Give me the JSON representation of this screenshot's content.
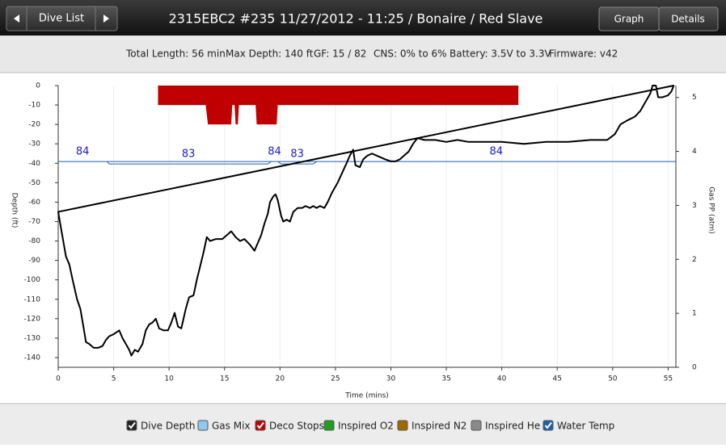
{
  "header": {
    "dive_list": "Dive List",
    "title": "2315EBC2 #235 11/27/2012 - 11:25  / Bonaire / Red Slave",
    "graph": "Graph",
    "details": "Details"
  },
  "info": [
    "Total Length: 56 min",
    "Max Depth: 140 ft",
    "GF: 15 / 82",
    "CNS: 0% to 6%",
    "Battery: 3.5V to 3.3V",
    "Firmware: v42"
  ],
  "chart_data": {
    "type": "line",
    "xlabel": "Time (mins)",
    "ylabel": "Depth (ft)",
    "y2label": "Gas PP (atm)",
    "xlim": [
      0,
      55.7
    ],
    "xticks": [
      0,
      5,
      10,
      15,
      20,
      25,
      30,
      35,
      40,
      45,
      50,
      55
    ],
    "ylim": [
      -145,
      0
    ],
    "yticks": [
      0,
      -10,
      -20,
      -30,
      -40,
      -50,
      -60,
      -70,
      -80,
      -90,
      -100,
      -110,
      -120,
      -130,
      -140
    ],
    "y2lim": [
      0,
      5.22
    ],
    "y2ticks": [
      0,
      1,
      2,
      3,
      4,
      5
    ],
    "temp_lim": [
      0,
      115
    ],
    "grid": "x",
    "depth": {
      "color": "#000000",
      "x": [
        0,
        0.3,
        0.7,
        1.0,
        1.3,
        1.7,
        2.0,
        2.3,
        2.5,
        2.8,
        3.2,
        3.6,
        4.0,
        4.3,
        4.6,
        5.0,
        5.5,
        5.8,
        6.1,
        6.4,
        6.6,
        6.9,
        7.2,
        7.6,
        7.9,
        8.2,
        8.5,
        8.8,
        9.1,
        9.5,
        9.9,
        10.2,
        10.5,
        10.8,
        11.1,
        11.5,
        11.8,
        12.2,
        12.5,
        12.8,
        13.1,
        13.4,
        13.7,
        14.2,
        14.8,
        15.2,
        15.6,
        16.0,
        16.4,
        16.8,
        17.3,
        17.7,
        18.0,
        18.3,
        18.6,
        18.9,
        19.1,
        19.4,
        19.6,
        19.8,
        20.1,
        20.3,
        20.6,
        20.9,
        21.2,
        21.6,
        22.0,
        22.3,
        22.7,
        23.0,
        23.3,
        23.6,
        24.0,
        24.3,
        24.7,
        25.2,
        25.6,
        26.0,
        26.3,
        26.6,
        26.8,
        27.2,
        27.5,
        27.9,
        28.3,
        28.7,
        29.1,
        29.5,
        30.0,
        30.4,
        30.8,
        31.2,
        31.6,
        32.0,
        32.4,
        33,
        34,
        35,
        36,
        37,
        38,
        40,
        42,
        44,
        46,
        48,
        49.5,
        50.2,
        50.7,
        51.3,
        52.0,
        52.5,
        53.0,
        53.4,
        53.6,
        53.9,
        54.1,
        54.5,
        55.0,
        55.3,
        55.5
      ],
      "values": [
        -65,
        -75,
        -88,
        -92,
        -100,
        -110,
        -115,
        -125,
        -132,
        -133,
        -135,
        -135,
        -134,
        -131,
        -129,
        -128,
        -126,
        -130,
        -133,
        -136,
        -139,
        -136,
        -137,
        -133,
        -126,
        -123,
        -122,
        -120,
        -125,
        -126,
        -126,
        -122,
        -117,
        -124,
        -125,
        -115,
        -109,
        -108,
        -100,
        -93,
        -86,
        -78,
        -80,
        -79,
        -79,
        -77,
        -75,
        -78,
        -80,
        -79,
        -82,
        -85,
        -81,
        -77,
        -71,
        -66,
        -60,
        -57,
        -56,
        -59,
        -67,
        -70,
        -69,
        -70,
        -65,
        -63,
        -63,
        -62,
        -63,
        -62,
        -63,
        -62,
        -63,
        -60,
        -55,
        -50,
        -45,
        -40,
        -36,
        -33,
        -41,
        -42,
        -38,
        -36,
        -35,
        -36,
        -37,
        -38,
        -39,
        -39,
        -38,
        -36,
        -34,
        -30,
        -27,
        -28,
        -28,
        -29,
        -28,
        -29,
        -29,
        -29,
        -30,
        -29,
        -29,
        -28,
        -28,
        -25,
        -20,
        -18,
        -16,
        -13,
        -8,
        -4,
        0,
        0,
        -6,
        -6,
        -5,
        -3,
        0
      ]
    },
    "deco": {
      "color": "#c00000",
      "x": [
        9,
        9,
        13.3,
        13.5,
        15.6,
        15.7,
        15.9,
        16.0,
        16.2,
        16.3,
        17.8,
        17.9,
        19.7,
        19.8,
        41.5,
        41.5
      ],
      "values": [
        0,
        -10,
        -10,
        -20,
        -20,
        -10,
        -10,
        -20,
        -20,
        -10,
        -10,
        -20,
        -20,
        -10,
        -10,
        0
      ]
    },
    "temp": {
      "color": "#1f5fa8",
      "label_color": "#1a1ad0",
      "x": [
        0,
        4.4,
        4.6,
        18.9,
        19.2,
        19.8,
        20.1,
        23.0,
        23.3,
        55.7
      ],
      "values": [
        84,
        84,
        83,
        83,
        84,
        84,
        83,
        83,
        84,
        84
      ]
    },
    "legend": [
      {
        "label": "Dive Depth",
        "color": "#222222",
        "checked": true
      },
      {
        "label": "Gas Mix",
        "color": "#8ec9f0",
        "checked": false
      },
      {
        "label": "Deco Stops",
        "color": "#c00000",
        "checked": true
      },
      {
        "label": "Inspired O2",
        "color": "#1ea01e",
        "checked": false
      },
      {
        "label": "Inspired N2",
        "color": "#a06a00",
        "checked": false
      },
      {
        "label": "Inspired He",
        "color": "#8a8a8a",
        "checked": false
      },
      {
        "label": "Water Temp",
        "color": "#1f5fb0",
        "checked": true
      }
    ]
  }
}
